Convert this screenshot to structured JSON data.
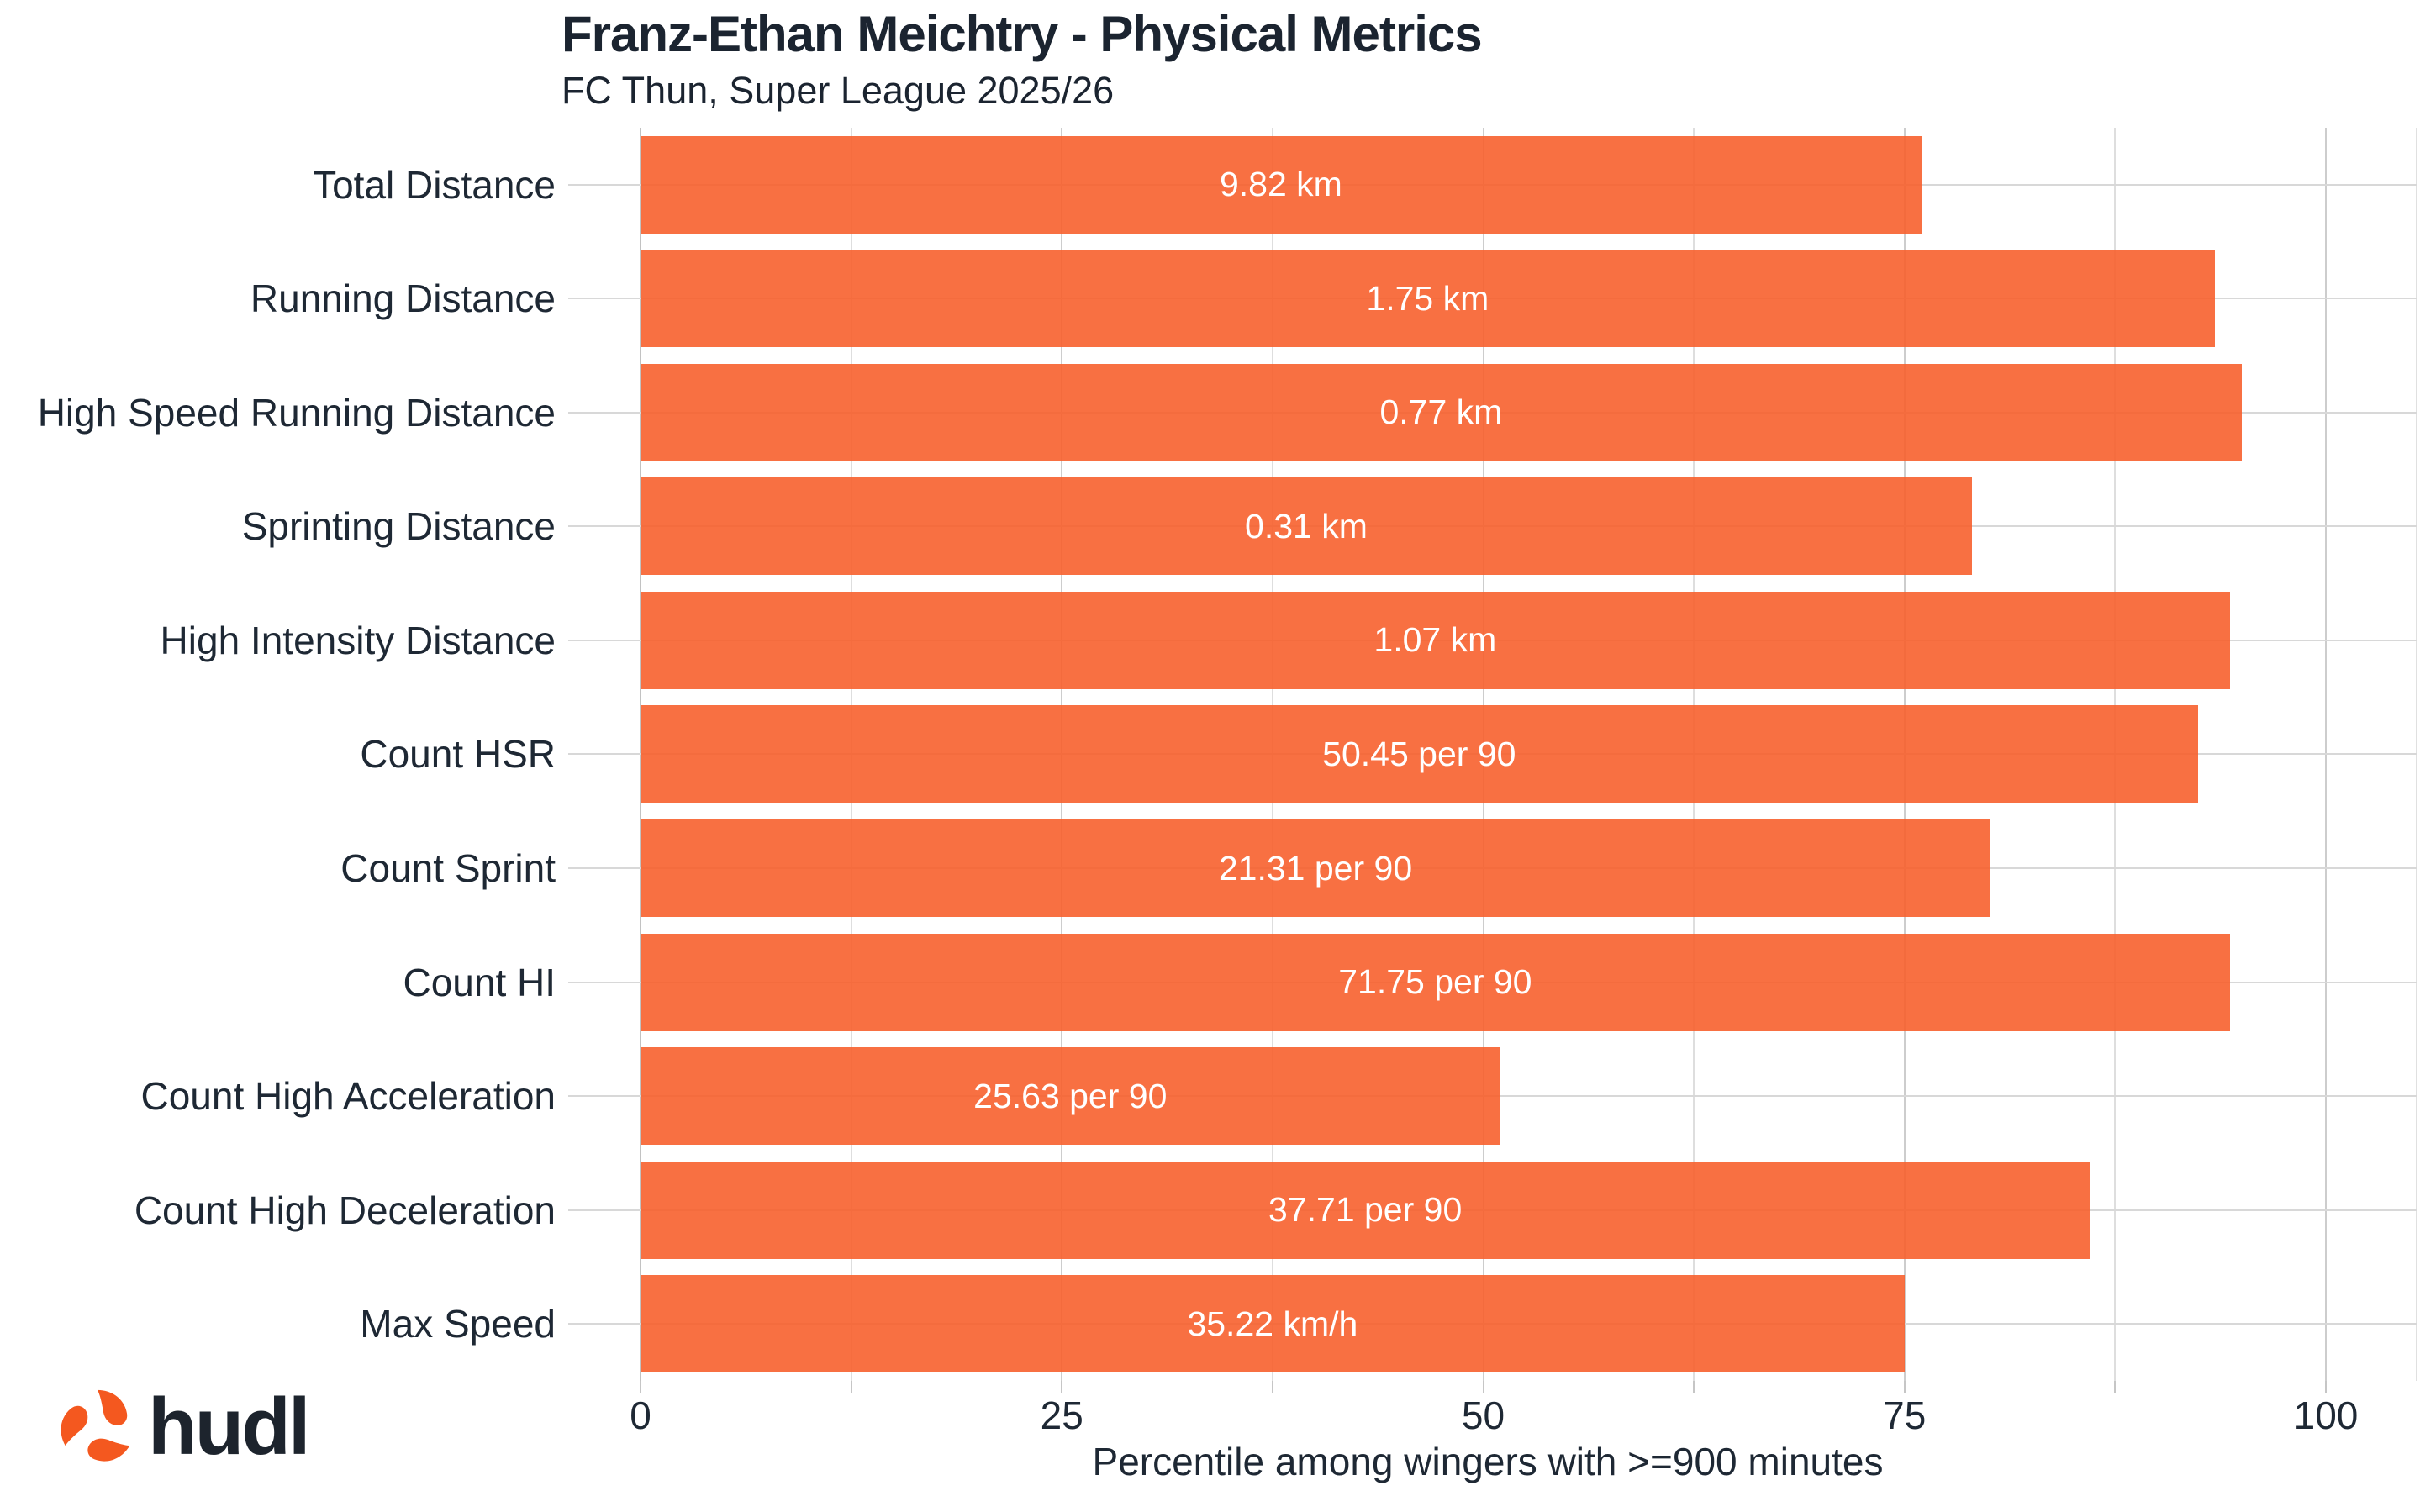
{
  "header": {
    "title": "Franz-Ethan Meichtry - Physical Metrics",
    "subtitle": "FC Thun, Super League 2025/26"
  },
  "branding": {
    "logo_text": "hudl",
    "logo_icon": "hudl-swirl-icon",
    "logo_orange": "#F4581F",
    "logo_dark": "#1D242D"
  },
  "colors": {
    "bar_fill": "#F8703F",
    "bar_fill_rgba": "rgba(247,96,45,0.9)",
    "text_dark": "#1E2834",
    "gridline": "#D8D8D8",
    "value_text": "#FFFFFF"
  },
  "chart_data": {
    "type": "bar",
    "orientation": "horizontal",
    "title": "Franz-Ethan Meichtry - Physical Metrics",
    "subtitle": "FC Thun, Super League 2025/26",
    "xlabel": "Percentile among wingers with >=900 minutes",
    "xlim": [
      0,
      105.5
    ],
    "xticks": [
      0,
      25,
      50,
      75,
      100
    ],
    "minor_tick_step": 12.5,
    "grid": true,
    "legend": "none",
    "categories": [
      "Total Distance",
      "Running Distance",
      "High Speed Running Distance",
      "Sprinting Distance",
      "High Intensity Distance",
      "Count HSR",
      "Count Sprint",
      "Count HI",
      "Count High Acceleration",
      "Count High Deceleration",
      "Max Speed"
    ],
    "series": [
      {
        "name": "Percentile",
        "values": [
          76,
          93.4,
          95,
          79,
          94.3,
          92.4,
          80.1,
          94.3,
          51,
          86,
          75
        ]
      }
    ],
    "bar_labels": [
      "9.82 km",
      "1.75 km",
      "0.77 km",
      "0.31 km",
      "1.07 km",
      "50.45 per 90",
      "21.31 per 90",
      "71.75 per 90",
      "25.63 per 90",
      "37.71 per 90",
      "35.22 km/h"
    ]
  }
}
